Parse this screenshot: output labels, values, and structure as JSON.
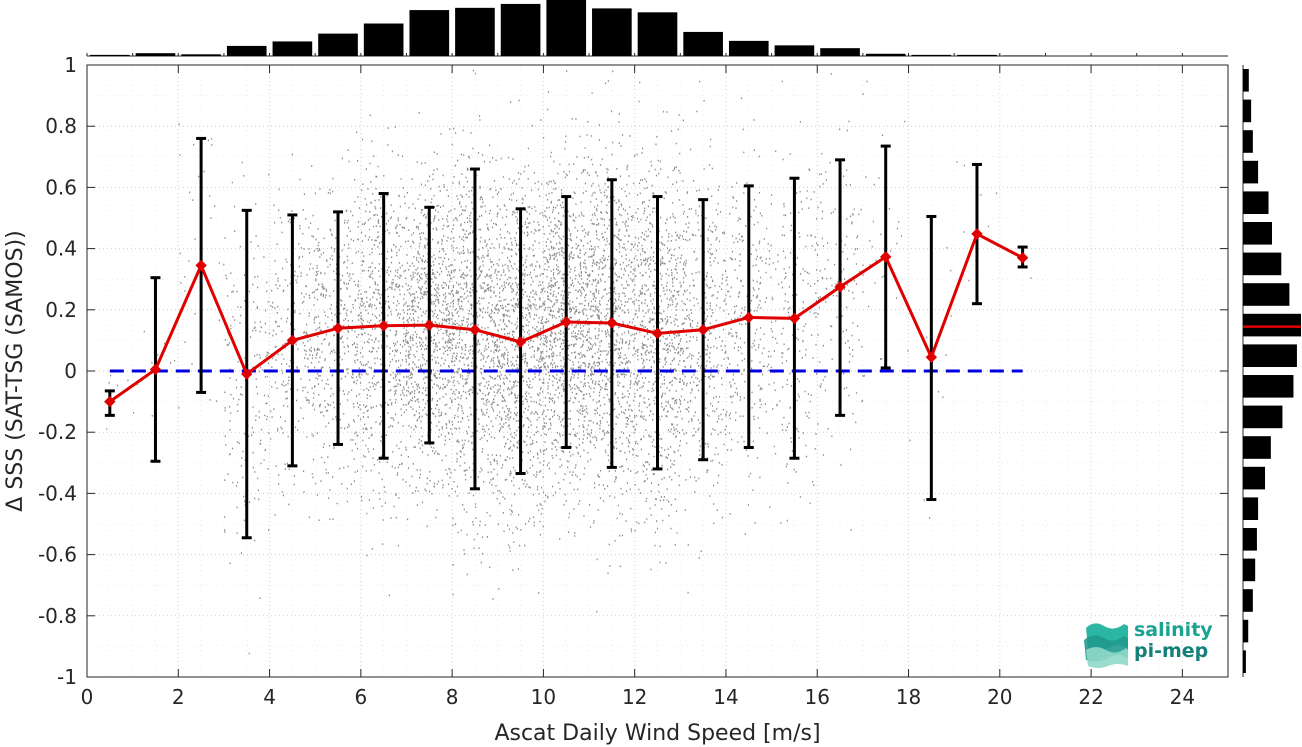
{
  "chart_data": {
    "type": "scatter",
    "title": "",
    "xlabel": "Ascat Daily Wind Speed [m/s]",
    "ylabel": "Δ SSS (SAT-TSG (SAMOS))",
    "xlim": [
      0,
      25
    ],
    "ylim": [
      -1,
      1
    ],
    "x_ticks": [
      "0",
      "2",
      "4",
      "6",
      "8",
      "10",
      "12",
      "14",
      "16",
      "18",
      "20",
      "22",
      "24"
    ],
    "y_ticks": [
      "1",
      "0.8",
      "0.6",
      "0.4",
      "0.2",
      "0",
      "-0.2",
      "-0.4",
      "-0.6",
      "-0.8",
      "-1"
    ],
    "grid": true,
    "binned_mean": {
      "color": "#e00000",
      "marker": "diamond",
      "x": [
        0.5,
        1.5,
        2.5,
        3.5,
        4.5,
        5.5,
        6.5,
        7.5,
        8.5,
        9.5,
        10.5,
        11.5,
        12.5,
        13.5,
        14.5,
        15.5,
        16.5,
        17.5,
        18.5,
        19.5,
        20.5
      ],
      "y": [
        -0.1,
        0.005,
        0.345,
        -0.01,
        0.1,
        0.14,
        0.148,
        0.15,
        0.135,
        0.095,
        0.16,
        0.157,
        0.123,
        0.135,
        0.175,
        0.172,
        0.275,
        0.373,
        0.045,
        0.448,
        0.37
      ],
      "err_low": [
        -0.145,
        -0.295,
        -0.07,
        -0.545,
        -0.31,
        -0.24,
        -0.285,
        -0.235,
        -0.385,
        -0.335,
        -0.25,
        -0.315,
        -0.32,
        -0.29,
        -0.25,
        -0.285,
        -0.145,
        0.01,
        -0.42,
        0.22,
        0.34
      ],
      "err_high": [
        -0.065,
        0.305,
        0.76,
        0.525,
        0.51,
        0.52,
        0.58,
        0.535,
        0.66,
        0.53,
        0.57,
        0.625,
        0.57,
        0.56,
        0.605,
        0.63,
        0.69,
        0.735,
        0.505,
        0.675,
        0.405
      ]
    },
    "zero_line": {
      "y": 0,
      "x_range": [
        0.5,
        20.5
      ],
      "color": "#0000dd",
      "style": "dashed"
    },
    "scatter_points": {
      "color": "#8c8c8c",
      "description_n": "dense cloud of collocated points"
    },
    "top_histogram": {
      "bin_centers": [
        0.5,
        1.5,
        2.5,
        3.5,
        4.5,
        5.5,
        6.5,
        7.5,
        8.5,
        9.5,
        10.5,
        11.5,
        12.5,
        13.5,
        14.5,
        15.5,
        16.5,
        17.5,
        18.5,
        19.5,
        20.5
      ],
      "relative_counts": [
        0.02,
        0.05,
        0.03,
        0.18,
        0.26,
        0.4,
        0.58,
        0.82,
        0.86,
        0.93,
        1.0,
        0.85,
        0.78,
        0.43,
        0.27,
        0.19,
        0.14,
        0.04,
        0.02,
        0.02,
        0.01
      ]
    },
    "right_histogram": {
      "bin_centers": [
        0.95,
        0.85,
        0.75,
        0.65,
        0.55,
        0.45,
        0.35,
        0.25,
        0.15,
        0.05,
        -0.05,
        -0.15,
        -0.25,
        -0.35,
        -0.45,
        -0.55,
        -0.65,
        -0.75,
        -0.85,
        -0.95
      ],
      "relative_counts": [
        0.1,
        0.14,
        0.17,
        0.26,
        0.44,
        0.5,
        0.66,
        0.8,
        1.0,
        0.93,
        0.87,
        0.68,
        0.48,
        0.38,
        0.26,
        0.24,
        0.21,
        0.17,
        0.09,
        0.05
      ],
      "mean_marker": {
        "y": 0.145,
        "color": "#e00000"
      }
    }
  },
  "logo": {
    "line1": "salinity",
    "line2": "pi-mep"
  }
}
